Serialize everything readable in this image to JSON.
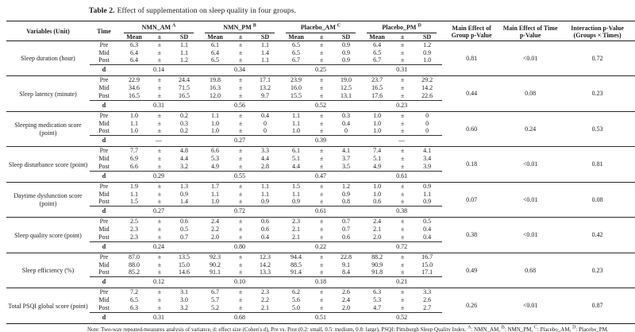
{
  "title": {
    "label": "Table 2.",
    "text": "Effect of supplementation on sleep quality in four groups."
  },
  "table": {
    "col_headers": {
      "variables": "Variables (Unit)",
      "time": "Time",
      "stat_labels": [
        "Mean",
        "±",
        "SD"
      ],
      "p_group": "Main Effect of Group p-Value",
      "p_time": "Main Effect of Time p-Value",
      "p_interaction": "Interaction p-Value (Groups × Times)"
    },
    "pm_symbol": "±",
    "d_label": "d",
    "groups": [
      {
        "name": "NMN_AM",
        "sup": "A"
      },
      {
        "name": "NMN_PM",
        "sup": "B"
      },
      {
        "name": "Placebo_AM",
        "sup": "C"
      },
      {
        "name": "Placebo_PM",
        "sup": "D"
      }
    ],
    "rows": [
      {
        "variable": "Sleep duration (hour)",
        "times": [
          {
            "label": "Pre",
            "values": [
              [
                "6.3",
                "1.1"
              ],
              [
                "6.1",
                "1.1"
              ],
              [
                "6.5",
                "0.9"
              ],
              [
                "6.4",
                "1.2"
              ]
            ]
          },
          {
            "label": "Mid",
            "values": [
              [
                "6.4",
                "1.1"
              ],
              [
                "6.4",
                "1.4"
              ],
              [
                "6.5",
                "0.9"
              ],
              [
                "6.5",
                "0.9"
              ]
            ]
          },
          {
            "label": "Post",
            "values": [
              [
                "6.4",
                "1.2"
              ],
              [
                "6.5",
                "1.1"
              ],
              [
                "6.7",
                "0.9"
              ],
              [
                "6.7",
                "1.0"
              ]
            ]
          }
        ],
        "d": [
          "0.14",
          "0.34",
          "0.25",
          "0.31"
        ],
        "p_group": "0.81",
        "p_time": "<0.01",
        "p_interaction": "0.72"
      },
      {
        "variable": "Sleep latency (minute)",
        "times": [
          {
            "label": "Pre",
            "values": [
              [
                "22.9",
                "24.4"
              ],
              [
                "19.8",
                "17.1"
              ],
              [
                "23.9",
                "19.0"
              ],
              [
                "23.7",
                "29.2"
              ]
            ]
          },
          {
            "label": "Mid",
            "values": [
              [
                "34.6",
                "71.5"
              ],
              [
                "16.3",
                "13.2"
              ],
              [
                "16.0",
                "12.5"
              ],
              [
                "16.5",
                "14.2"
              ]
            ]
          },
          {
            "label": "Post",
            "values": [
              [
                "16.5",
                "16.5"
              ],
              [
                "12.0",
                "9.7"
              ],
              [
                "15.5",
                "13.1"
              ],
              [
                "17.6",
                "22.6"
              ]
            ]
          }
        ],
        "d": [
          "0.31",
          "0.56",
          "0.52",
          "0.23"
        ],
        "p_group": "0.44",
        "p_time": "0.08",
        "p_interaction": "0.23"
      },
      {
        "variable": "Sleeping medication score (point)",
        "times": [
          {
            "label": "Pre",
            "values": [
              [
                "1.0",
                "0.2"
              ],
              [
                "1.1",
                "0.4"
              ],
              [
                "1.1",
                "0.3"
              ],
              [
                "1.0",
                "0"
              ]
            ]
          },
          {
            "label": "Mid",
            "values": [
              [
                "1.1",
                "0.3"
              ],
              [
                "1.0",
                "0"
              ],
              [
                "1.1",
                "0.4"
              ],
              [
                "1.0",
                "0"
              ]
            ]
          },
          {
            "label": "Post",
            "values": [
              [
                "1.0",
                "0.2"
              ],
              [
                "1.0",
                "0"
              ],
              [
                "1.0",
                "0"
              ],
              [
                "1.0",
                "0"
              ]
            ]
          }
        ],
        "d": [
          "—",
          "0.27",
          "0.39",
          "—"
        ],
        "p_group": "0.60",
        "p_time": "0.24",
        "p_interaction": "0.53"
      },
      {
        "variable": "Sleep disturbance score (point)",
        "times": [
          {
            "label": "Pre",
            "values": [
              [
                "7.7",
                "4.8"
              ],
              [
                "6.6",
                "3.3"
              ],
              [
                "6.1",
                "4.1"
              ],
              [
                "7.4",
                "4.1"
              ]
            ]
          },
          {
            "label": "Mid",
            "values": [
              [
                "6.9",
                "4.4"
              ],
              [
                "5.3",
                "4.4"
              ],
              [
                "5.1",
                "3.7"
              ],
              [
                "5.1",
                "3.4"
              ]
            ]
          },
          {
            "label": "Post",
            "values": [
              [
                "6.6",
                "3.2"
              ],
              [
                "4.9",
                "2.8"
              ],
              [
                "4.4",
                "3.5"
              ],
              [
                "4.9",
                "3.9"
              ]
            ]
          }
        ],
        "d": [
          "0.29",
          "0.55",
          "0.47",
          "0.61"
        ],
        "p_group": "0.18",
        "p_time": "<0.01",
        "p_interaction": "0.81"
      },
      {
        "variable": "Daytime dysfunction score (point)",
        "times": [
          {
            "label": "Pre",
            "values": [
              [
                "1.9",
                "1.3"
              ],
              [
                "1.7",
                "1.1"
              ],
              [
                "1.5",
                "1.2"
              ],
              [
                "1.0",
                "0.9"
              ]
            ]
          },
          {
            "label": "Mid",
            "values": [
              [
                "1.1",
                "0.9"
              ],
              [
                "1.1",
                "1.1"
              ],
              [
                "1.1",
                "0.9"
              ],
              [
                "1.0",
                "1.1"
              ]
            ]
          },
          {
            "label": "Post",
            "values": [
              [
                "1.5",
                "1.4"
              ],
              [
                "1.0",
                "0.9"
              ],
              [
                "0.9",
                "0.8"
              ],
              [
                "0.6",
                "0.9"
              ]
            ]
          }
        ],
        "d": [
          "0.27",
          "0.72",
          "0.61",
          "0.38"
        ],
        "p_group": "0.07",
        "p_time": "<0.01",
        "p_interaction": "0.08"
      },
      {
        "variable": "Sleep quality score (point)",
        "times": [
          {
            "label": "Pre",
            "values": [
              [
                "2.5",
                "0.6"
              ],
              [
                "2.4",
                "0.6"
              ],
              [
                "2.3",
                "0.7"
              ],
              [
                "2.4",
                "0.5"
              ]
            ]
          },
          {
            "label": "Mid",
            "values": [
              [
                "2.3",
                "0.5"
              ],
              [
                "2.2",
                "0.6"
              ],
              [
                "2.1",
                "0.7"
              ],
              [
                "2.1",
                "0.4"
              ]
            ]
          },
          {
            "label": "Post",
            "values": [
              [
                "2.3",
                "0.7"
              ],
              [
                "2.0",
                "0.4"
              ],
              [
                "2.1",
                "0.6"
              ],
              [
                "2.0",
                "0.4"
              ]
            ]
          }
        ],
        "d": [
          "0.24",
          "0.80",
          "0.22",
          "0.72"
        ],
        "p_group": "0.38",
        "p_time": "<0.01",
        "p_interaction": "0.42"
      },
      {
        "variable": "Sleep efficiency (%)",
        "times": [
          {
            "label": "Pre",
            "values": [
              [
                "87.0",
                "13.5"
              ],
              [
                "92.3",
                "12.3"
              ],
              [
                "94.4",
                "22.8"
              ],
              [
                "88.2",
                "16.7"
              ]
            ]
          },
          {
            "label": "Mid",
            "values": [
              [
                "88.0",
                "15.0"
              ],
              [
                "90.2",
                "14.2"
              ],
              [
                "88.5",
                "9.1"
              ],
              [
                "90.9",
                "15.0"
              ]
            ]
          },
          {
            "label": "Post",
            "values": [
              [
                "85.2",
                "14.6"
              ],
              [
                "91.1",
                "13.3"
              ],
              [
                "91.4",
                "8.4"
              ],
              [
                "91.8",
                "17.1"
              ]
            ]
          }
        ],
        "d": [
          "0.12",
          "0.10",
          "0.18",
          "0.21"
        ],
        "p_group": "0.49",
        "p_time": "0.68",
        "p_interaction": "0.23"
      },
      {
        "variable": "Total PSQI global score (point)",
        "times": [
          {
            "label": "Pre",
            "values": [
              [
                "7.2",
                "3.1"
              ],
              [
                "6.7",
                "2.3"
              ],
              [
                "6.2",
                "2.6"
              ],
              [
                "6.3",
                "3.3"
              ]
            ]
          },
          {
            "label": "Mid",
            "values": [
              [
                "6.5",
                "3.0"
              ],
              [
                "5.7",
                "2.2"
              ],
              [
                "5.6",
                "2.4"
              ],
              [
                "5.3",
                "2.6"
              ]
            ]
          },
          {
            "label": "Post",
            "values": [
              [
                "6.3",
                "3.2"
              ],
              [
                "5.2",
                "2.1"
              ],
              [
                "5.0",
                "2.0"
              ],
              [
                "4.7",
                "2.7"
              ]
            ]
          }
        ],
        "d": [
          "0.31",
          "0.68",
          "0.51",
          "0.52"
        ],
        "p_group": "0.26",
        "p_time": "<0.01",
        "p_interaction": "0.87"
      }
    ]
  },
  "note": {
    "prefix": "Note: Two-way repeated-measures analysis of variance, d: effect size (Cohen's d), Pre vs. Post (0.2: small, 0.5: medium, 0.8: large), PSQI: Pittsburgh Sleep Quality Index. ",
    "refs": [
      {
        "sup": "A",
        "text": ": NMN_AM, "
      },
      {
        "sup": "B",
        "text": ": NMN_PM, "
      },
      {
        "sup": "C",
        "text": ": Placebo_AM, "
      },
      {
        "sup": "D",
        "text": ": Placebo_PM."
      }
    ]
  }
}
